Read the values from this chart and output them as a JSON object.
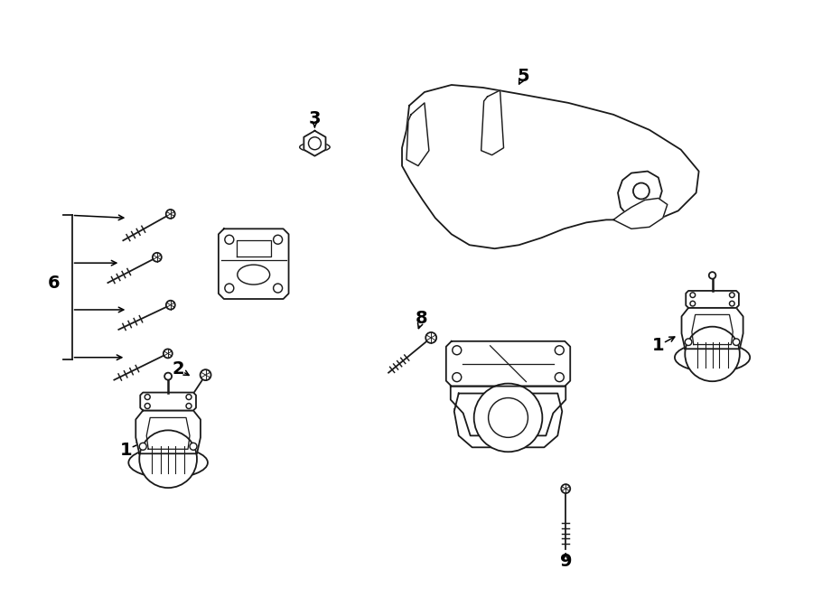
{
  "background_color": "#ffffff",
  "line_color": "#1a1a1a",
  "fig_width": 9.0,
  "fig_height": 6.61,
  "dpi": 100,
  "lw": 1.3
}
